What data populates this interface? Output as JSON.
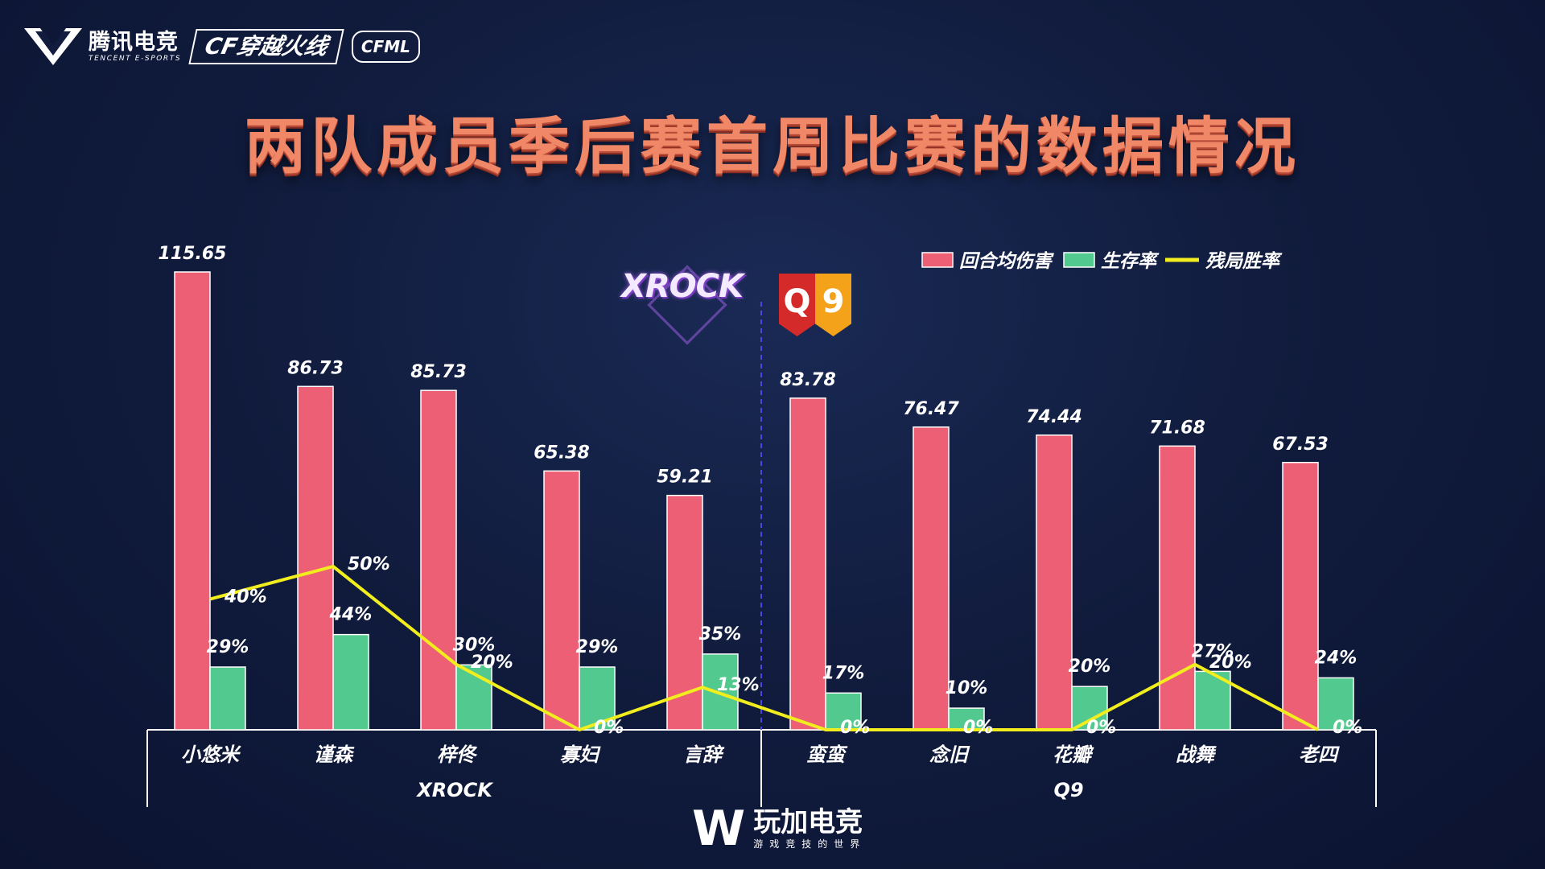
{
  "header": {
    "tencent_cn": "腾讯电竞",
    "tencent_en": "TENCENT E-SPORTS",
    "cf_logo": "CF穿越火线",
    "cfml_logo": "CFML",
    "title": "两队成员季后赛首周比赛的数据情况"
  },
  "teams": {
    "xrock_logo": "XROCK",
    "q9_logo_left": "Q",
    "q9_logo_right": "9"
  },
  "footer": {
    "brand": "玩加电竞",
    "tagline": "游戏竞技的世界"
  },
  "colors": {
    "damage": "#ec5f75",
    "survival": "#52c98e",
    "winrate": "#f2ee1e",
    "divider": "#4f45e6"
  },
  "chart_data": {
    "type": "bar",
    "categories": [
      "小悠米",
      "谨森",
      "梓佟",
      "寡妇",
      "言辞",
      "蛮蛮",
      "念旧",
      "花瓣",
      "战舞",
      "老四"
    ],
    "groups": [
      {
        "name": "XROCK",
        "categories": [
          "小悠米",
          "谨森",
          "梓佟",
          "寡妇",
          "言辞"
        ]
      },
      {
        "name": "Q9",
        "categories": [
          "蛮蛮",
          "念旧",
          "花瓣",
          "战舞",
          "老四"
        ]
      }
    ],
    "series": [
      {
        "name": "回合均伤害",
        "kind": "bar",
        "labels": [
          "115.65",
          "86.73",
          "85.73",
          "65.38",
          "59.21",
          "83.78",
          "76.47",
          "74.44",
          "71.68",
          "67.53"
        ],
        "values": [
          115.65,
          86.73,
          85.73,
          65.38,
          59.21,
          83.78,
          76.47,
          74.44,
          71.68,
          67.53
        ]
      },
      {
        "name": "生存率",
        "kind": "bar",
        "labels": [
          "29%",
          "44%",
          "30%",
          "29%",
          "35%",
          "17%",
          "10%",
          "20%",
          "27%",
          "24%"
        ],
        "values": [
          29,
          44,
          30,
          29,
          35,
          17,
          10,
          20,
          27,
          24
        ]
      },
      {
        "name": "残局胜率",
        "kind": "line",
        "labels": [
          "40%",
          "50%",
          "20%",
          "0%",
          "13%",
          "0%",
          "0%",
          "0%",
          "20%",
          "0%"
        ],
        "values": [
          40,
          50,
          20,
          0,
          13,
          0,
          0,
          0,
          20,
          0
        ]
      }
    ],
    "legend_position": "top-right",
    "grid": false
  }
}
